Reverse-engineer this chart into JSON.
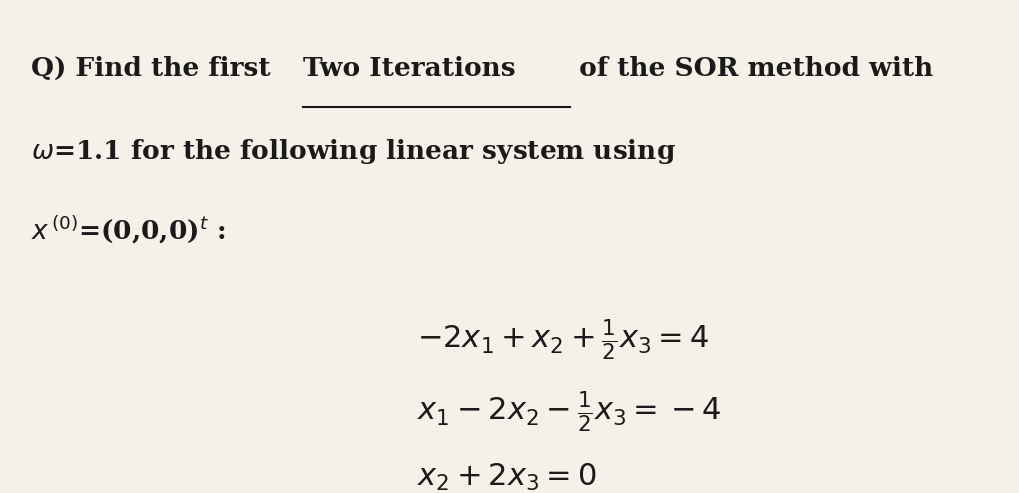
{
  "background_color": "#f5f0e8",
  "fig_width": 10.19,
  "fig_height": 4.93,
  "dpi": 100,
  "header_line1": "Q) Find the first ",
  "header_underline": "Two Iterations",
  "header_line1_after": " of the SOR method with",
  "header_line2": "$\\omega$=1.1 for the following linear system using",
  "header_line3": "$x^{(0)}$=(0,0,0)",
  "header_line3_t": "$^{t}$ :",
  "eq1": "$-2x_1+x_2+\\dfrac{1}{2}x_3=4$",
  "eq2": "$x_1-2x_2-\\dfrac{1}{2}x_3=-4$",
  "eq3": "$x_2+2x_3=0$",
  "text_color": "#1a1a1a",
  "font_size_header": 19,
  "font_size_eq": 22
}
